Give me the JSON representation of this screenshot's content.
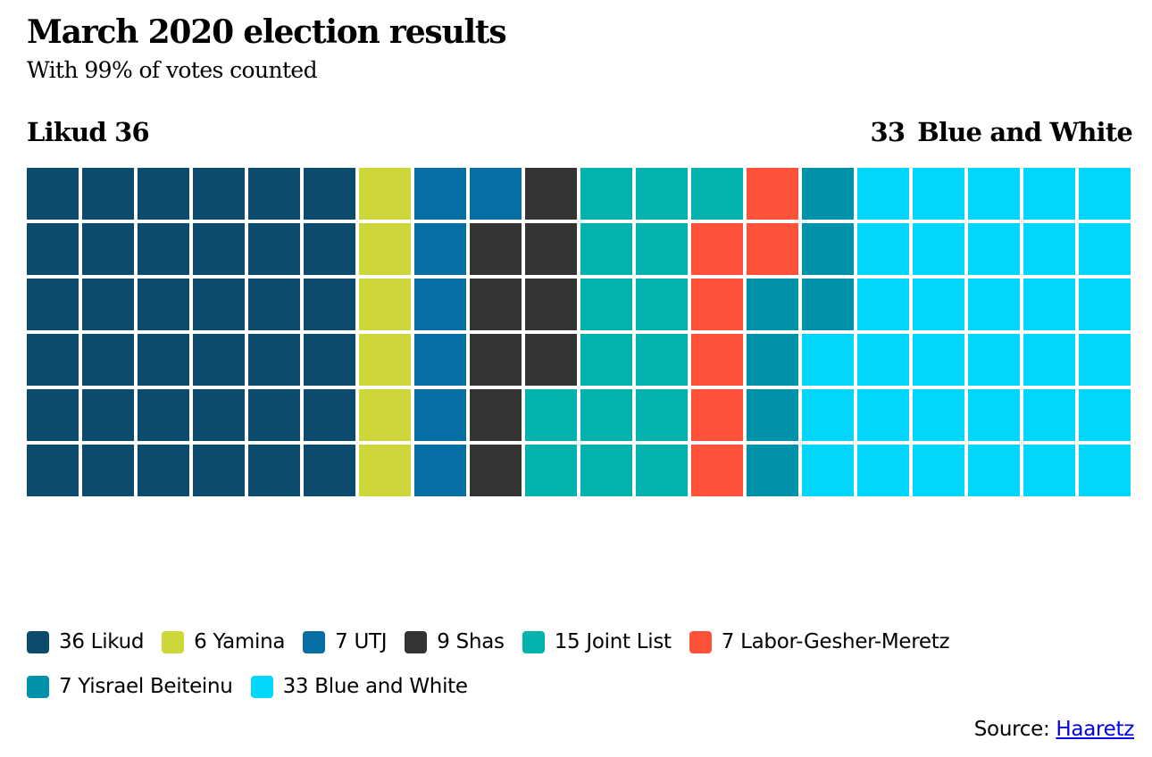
{
  "chart_data": {
    "type": "waffle",
    "title": "March 2020 election results",
    "subtitle": "With 99% of votes counted",
    "total_seats": 120,
    "rows": 6,
    "columns": 20,
    "fill_order": "column-major, top-to-bottom, left-to-right",
    "left_label": {
      "party": "Likud",
      "seats": "36"
    },
    "right_label": {
      "party": "Blue and White",
      "seats": "33"
    },
    "series": [
      {
        "name": "Likud",
        "seats": 36,
        "color": "#0c4a6e",
        "legend": "36 Likud"
      },
      {
        "name": "Yamina",
        "seats": 6,
        "color": "#cdd73b",
        "legend": "6 Yamina"
      },
      {
        "name": "UTJ",
        "seats": 7,
        "color": "#066ea3",
        "legend": "7 UTJ"
      },
      {
        "name": "Shas",
        "seats": 9,
        "color": "#333333",
        "legend": "9 Shas"
      },
      {
        "name": "Joint List",
        "seats": 15,
        "color": "#04b2ad",
        "legend": "15 Joint List"
      },
      {
        "name": "Labor-Gesher-Meretz",
        "seats": 7,
        "color": "#ff523b",
        "legend": "7 Labor-Gesher-Meretz"
      },
      {
        "name": "Yisrael Beiteinu",
        "seats": 7,
        "color": "#0092aa",
        "legend": "7 Yisrael Beiteinu"
      },
      {
        "name": "Blue and White",
        "seats": 33,
        "color": "#03d6fd",
        "legend": "33 Blue and White"
      }
    ],
    "legend_position": "bottom"
  },
  "source": {
    "label": "Source:",
    "link_text": "Haaretz"
  }
}
